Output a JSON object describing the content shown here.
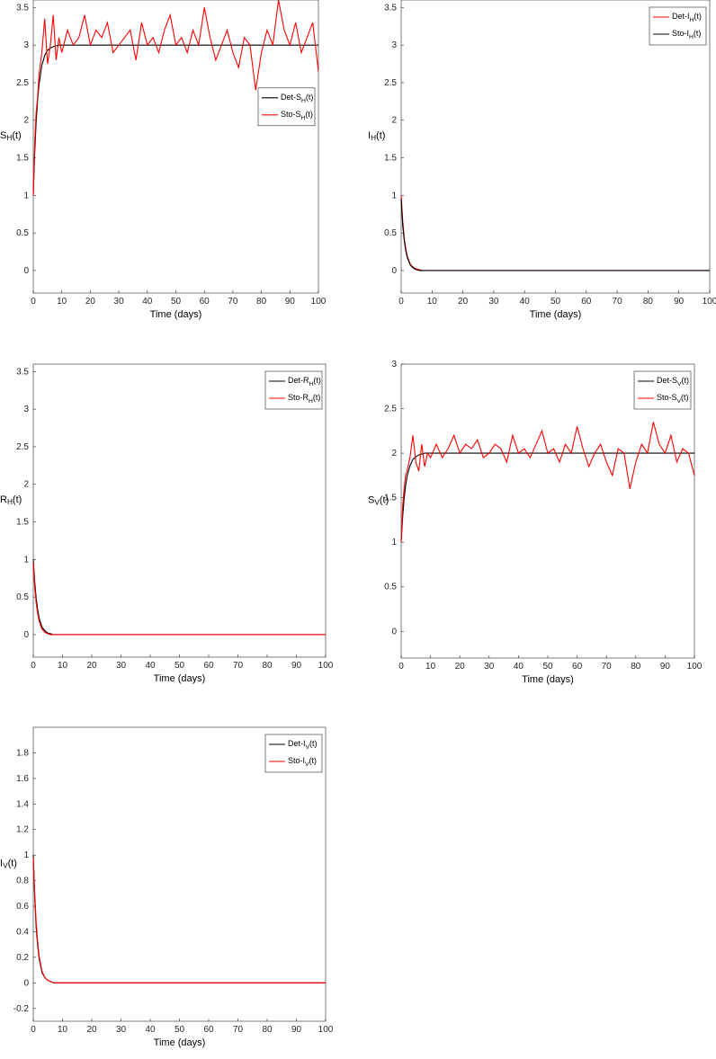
{
  "chart_data": [
    {
      "type": "line",
      "ylabel": "S_H(t)",
      "xlabel": "Time (days)",
      "xlim": [
        0,
        100
      ],
      "ylim": [
        -0.3,
        3.6
      ],
      "xticks": [
        0,
        10,
        20,
        30,
        40,
        50,
        60,
        70,
        80,
        90,
        100
      ],
      "yticks": [
        0,
        0.5,
        1,
        1.5,
        2,
        2.5,
        3,
        3.5
      ],
      "legend": "right",
      "x": [
        0,
        0.5,
        1,
        1.5,
        2,
        3,
        4,
        5,
        6,
        7,
        8,
        9,
        10,
        12,
        14,
        16,
        18,
        20,
        22,
        24,
        26,
        28,
        30,
        32,
        34,
        36,
        38,
        40,
        42,
        44,
        46,
        48,
        50,
        52,
        54,
        56,
        58,
        60,
        62,
        64,
        66,
        68,
        70,
        72,
        74,
        76,
        78,
        80,
        82,
        84,
        86,
        88,
        90,
        92,
        94,
        96,
        98,
        100
      ],
      "series": [
        {
          "name": "Det-S_H(t)",
          "color": "#000000",
          "values": [
            1,
            1.57,
            1.97,
            2.26,
            2.47,
            2.73,
            2.86,
            2.93,
            2.96,
            2.98,
            2.99,
            3,
            3,
            3,
            3,
            3,
            3,
            3,
            3,
            3,
            3,
            3,
            3,
            3,
            3,
            3,
            3,
            3,
            3,
            3,
            3,
            3,
            3,
            3,
            3,
            3,
            3,
            3,
            3,
            3,
            3,
            3,
            3,
            3,
            3,
            3,
            3,
            3,
            3,
            3,
            3,
            3,
            3,
            3,
            3,
            3,
            3,
            3
          ]
        },
        {
          "name": "Sto-S_H(t)",
          "color": "#ff0000",
          "values": [
            1.0,
            1.7,
            2.1,
            2.3,
            2.6,
            2.9,
            3.35,
            2.75,
            3.0,
            3.4,
            2.8,
            3.1,
            2.9,
            3.2,
            3.0,
            3.1,
            3.4,
            3.0,
            3.2,
            3.1,
            3.3,
            2.9,
            3.0,
            3.1,
            3.2,
            2.8,
            3.3,
            3.0,
            3.1,
            2.9,
            3.2,
            3.4,
            3.0,
            3.1,
            2.9,
            3.2,
            3.0,
            3.5,
            3.1,
            2.8,
            3.0,
            3.2,
            2.9,
            2.7,
            3.1,
            3.0,
            2.4,
            2.9,
            3.2,
            3.0,
            3.6,
            3.2,
            3.0,
            3.3,
            2.9,
            3.1,
            3.3,
            2.65
          ]
        }
      ]
    },
    {
      "type": "line",
      "ylabel": "I_H(t)",
      "xlabel": "Time (days)",
      "xlim": [
        0,
        100
      ],
      "ylim": [
        -0.3,
        3.6
      ],
      "xticks": [
        0,
        10,
        20,
        30,
        40,
        50,
        60,
        70,
        80,
        90,
        100
      ],
      "yticks": [
        0,
        0.5,
        1,
        1.5,
        2,
        2.5,
        3,
        3.5
      ],
      "legend": "northeast",
      "x": [
        0,
        0.5,
        1,
        1.5,
        2,
        3,
        4,
        5,
        6,
        7,
        8,
        9,
        10,
        12,
        14,
        16,
        18,
        20,
        22,
        24,
        26,
        28,
        30,
        32,
        34,
        36,
        38,
        40,
        42,
        44,
        46,
        48,
        50,
        52,
        54,
        56,
        58,
        60,
        62,
        64,
        66,
        68,
        70,
        72,
        74,
        76,
        78,
        80,
        82,
        84,
        86,
        88,
        90,
        92,
        94,
        96,
        98,
        100
      ],
      "series": [
        {
          "name": "Det-I_H(t)",
          "color": "#ff0000",
          "values": [
            1,
            0.66,
            0.43,
            0.29,
            0.19,
            0.08,
            0.04,
            0.02,
            0.01,
            0,
            0,
            0,
            0,
            0,
            0,
            0,
            0,
            0,
            0,
            0,
            0,
            0,
            0,
            0,
            0,
            0,
            0,
            0,
            0,
            0,
            0,
            0,
            0,
            0,
            0,
            0,
            0,
            0,
            0,
            0,
            0,
            0,
            0,
            0,
            0,
            0,
            0,
            0,
            0,
            0,
            0,
            0,
            0,
            0,
            0,
            0,
            0,
            0
          ]
        },
        {
          "name": "Sto-I_H(t)",
          "color": "#000000",
          "values": [
            0.95,
            0.6,
            0.4,
            0.26,
            0.17,
            0.07,
            0.03,
            0.01,
            0,
            0,
            0,
            0,
            0,
            0,
            0,
            0,
            0,
            0,
            0,
            0,
            0,
            0,
            0,
            0,
            0,
            0,
            0,
            0,
            0,
            0,
            0,
            0,
            0,
            0,
            0,
            0,
            0,
            0,
            0,
            0,
            0,
            0,
            0,
            0,
            0,
            0,
            0,
            0,
            0,
            0,
            0,
            0,
            0,
            0,
            0,
            0,
            0,
            0
          ]
        }
      ]
    },
    {
      "type": "line",
      "ylabel": "R_H(t)",
      "xlabel": "Time (days)",
      "xlim": [
        0,
        100
      ],
      "ylim": [
        -0.3,
        3.6
      ],
      "xticks": [
        0,
        10,
        20,
        30,
        40,
        50,
        60,
        70,
        80,
        90,
        100
      ],
      "yticks": [
        0,
        0.5,
        1,
        1.5,
        2,
        2.5,
        3,
        3.5
      ],
      "legend": "northeast",
      "x": [
        0,
        0.5,
        1,
        1.5,
        2,
        3,
        4,
        5,
        6,
        7,
        8,
        9,
        10,
        12,
        14,
        16,
        18,
        20,
        22,
        24,
        26,
        28,
        30,
        32,
        34,
        36,
        38,
        40,
        42,
        44,
        46,
        48,
        50,
        52,
        54,
        56,
        58,
        60,
        62,
        64,
        66,
        68,
        70,
        72,
        74,
        76,
        78,
        80,
        82,
        84,
        86,
        88,
        90,
        92,
        94,
        96,
        98,
        100
      ],
      "series": [
        {
          "name": "Det-R_H(t)",
          "color": "#000000",
          "values": [
            1,
            0.7,
            0.48,
            0.33,
            0.22,
            0.1,
            0.05,
            0.02,
            0.01,
            0,
            0,
            0,
            0,
            0,
            0,
            0,
            0,
            0,
            0,
            0,
            0,
            0,
            0,
            0,
            0,
            0,
            0,
            0,
            0,
            0,
            0,
            0,
            0,
            0,
            0,
            0,
            0,
            0,
            0,
            0,
            0,
            0,
            0,
            0,
            0,
            0,
            0,
            0,
            0,
            0,
            0,
            0,
            0,
            0,
            0,
            0,
            0,
            0
          ]
        },
        {
          "name": "Sto-R_H(t)",
          "color": "#ff0000",
          "values": [
            0.95,
            0.62,
            0.42,
            0.28,
            0.18,
            0.07,
            0.03,
            0.01,
            0,
            0,
            0,
            0,
            0,
            0,
            0,
            0,
            0,
            0,
            0,
            0,
            0,
            0,
            0,
            0,
            0,
            0,
            0,
            0,
            0,
            0,
            0,
            0,
            0,
            0,
            0,
            0,
            0,
            0,
            0,
            0,
            0,
            0,
            0,
            0,
            0,
            0,
            0,
            0,
            0,
            0,
            0,
            0,
            0,
            0,
            0,
            0,
            0,
            0
          ]
        }
      ]
    },
    {
      "type": "line",
      "ylabel": "S_V(t)",
      "xlabel": "Time (days)",
      "xlim": [
        0,
        100
      ],
      "ylim": [
        -0.3,
        3
      ],
      "xticks": [
        0,
        10,
        20,
        30,
        40,
        50,
        60,
        70,
        80,
        90,
        100
      ],
      "yticks": [
        0,
        0.5,
        1,
        1.5,
        2,
        2.5,
        3
      ],
      "legend": "northeast",
      "x": [
        0,
        0.5,
        1,
        1.5,
        2,
        3,
        4,
        5,
        6,
        7,
        8,
        9,
        10,
        12,
        14,
        16,
        18,
        20,
        22,
        24,
        26,
        28,
        30,
        32,
        34,
        36,
        38,
        40,
        42,
        44,
        46,
        48,
        50,
        52,
        54,
        56,
        58,
        60,
        62,
        64,
        66,
        68,
        70,
        72,
        74,
        76,
        78,
        80,
        82,
        84,
        86,
        88,
        90,
        92,
        94,
        96,
        98,
        100
      ],
      "series": [
        {
          "name": "Det-S_V(t)",
          "color": "#000000",
          "values": [
            1,
            1.28,
            1.49,
            1.63,
            1.74,
            1.86,
            1.93,
            1.96,
            1.98,
            1.99,
            2,
            2,
            2,
            2,
            2,
            2,
            2,
            2,
            2,
            2,
            2,
            2,
            2,
            2,
            2,
            2,
            2,
            2,
            2,
            2,
            2,
            2,
            2,
            2,
            2,
            2,
            2,
            2,
            2,
            2,
            2,
            2,
            2,
            2,
            2,
            2,
            2,
            2,
            2,
            2,
            2,
            2,
            2,
            2,
            2,
            2,
            2,
            2
          ]
        },
        {
          "name": "Sto-S_V(t)",
          "color": "#ff0000",
          "values": [
            1.0,
            1.4,
            1.6,
            1.75,
            1.8,
            1.95,
            2.2,
            1.9,
            1.8,
            2.1,
            1.85,
            2.0,
            1.95,
            2.1,
            1.95,
            2.05,
            2.2,
            2.0,
            2.1,
            2.05,
            2.15,
            1.95,
            2.0,
            2.1,
            2.05,
            1.9,
            2.2,
            2.0,
            2.05,
            1.95,
            2.1,
            2.25,
            2.0,
            2.05,
            1.9,
            2.1,
            2.0,
            2.3,
            2.05,
            1.85,
            2.0,
            2.1,
            1.9,
            1.75,
            2.05,
            2.0,
            1.6,
            1.9,
            2.1,
            2.0,
            2.35,
            2.1,
            2.0,
            2.2,
            1.9,
            2.05,
            2.0,
            1.75
          ]
        }
      ]
    },
    {
      "type": "line",
      "ylabel": "I_V(t)",
      "xlabel": "Time (days)",
      "xlim": [
        0,
        100
      ],
      "ylim": [
        -0.3,
        2
      ],
      "xticks": [
        0,
        10,
        20,
        30,
        40,
        50,
        60,
        70,
        80,
        90,
        100
      ],
      "yticks": [
        -0.2,
        0,
        0.2,
        0.4,
        0.6,
        0.8,
        1,
        1.2,
        1.4,
        1.6,
        1.8
      ],
      "legend": "northeast",
      "x": [
        0,
        0.5,
        1,
        1.5,
        2,
        3,
        4,
        5,
        6,
        7,
        8,
        9,
        10,
        12,
        14,
        16,
        18,
        20,
        22,
        24,
        26,
        28,
        30,
        32,
        34,
        36,
        38,
        40,
        42,
        44,
        46,
        48,
        50,
        52,
        54,
        56,
        58,
        60,
        62,
        64,
        66,
        68,
        70,
        72,
        74,
        76,
        78,
        80,
        82,
        84,
        86,
        88,
        90,
        92,
        94,
        96,
        98,
        100
      ],
      "series": [
        {
          "name": "Det-I_V(t)",
          "color": "#000000",
          "values": [
            1,
            0.66,
            0.43,
            0.29,
            0.19,
            0.08,
            0.04,
            0.02,
            0.01,
            0,
            0,
            0,
            0,
            0,
            0,
            0,
            0,
            0,
            0,
            0,
            0,
            0,
            0,
            0,
            0,
            0,
            0,
            0,
            0,
            0,
            0,
            0,
            0,
            0,
            0,
            0,
            0,
            0,
            0,
            0,
            0,
            0,
            0,
            0,
            0,
            0,
            0,
            0,
            0,
            0,
            0,
            0,
            0,
            0,
            0,
            0,
            0,
            0
          ]
        },
        {
          "name": "Sto-I_V(t)",
          "color": "#ff0000",
          "values": [
            0.98,
            0.7,
            0.47,
            0.32,
            0.21,
            0.09,
            0.04,
            0.02,
            0.01,
            0,
            0,
            0,
            0,
            0,
            0,
            0,
            0,
            0,
            0,
            0,
            0,
            0,
            0,
            0,
            0,
            0,
            0,
            0,
            0,
            0,
            0,
            0,
            0,
            0,
            0,
            0,
            0,
            0,
            0,
            0,
            0,
            0,
            0,
            0,
            0,
            0,
            0,
            0,
            0,
            0,
            0,
            0,
            0,
            0,
            0,
            0,
            0,
            0
          ]
        }
      ]
    }
  ]
}
